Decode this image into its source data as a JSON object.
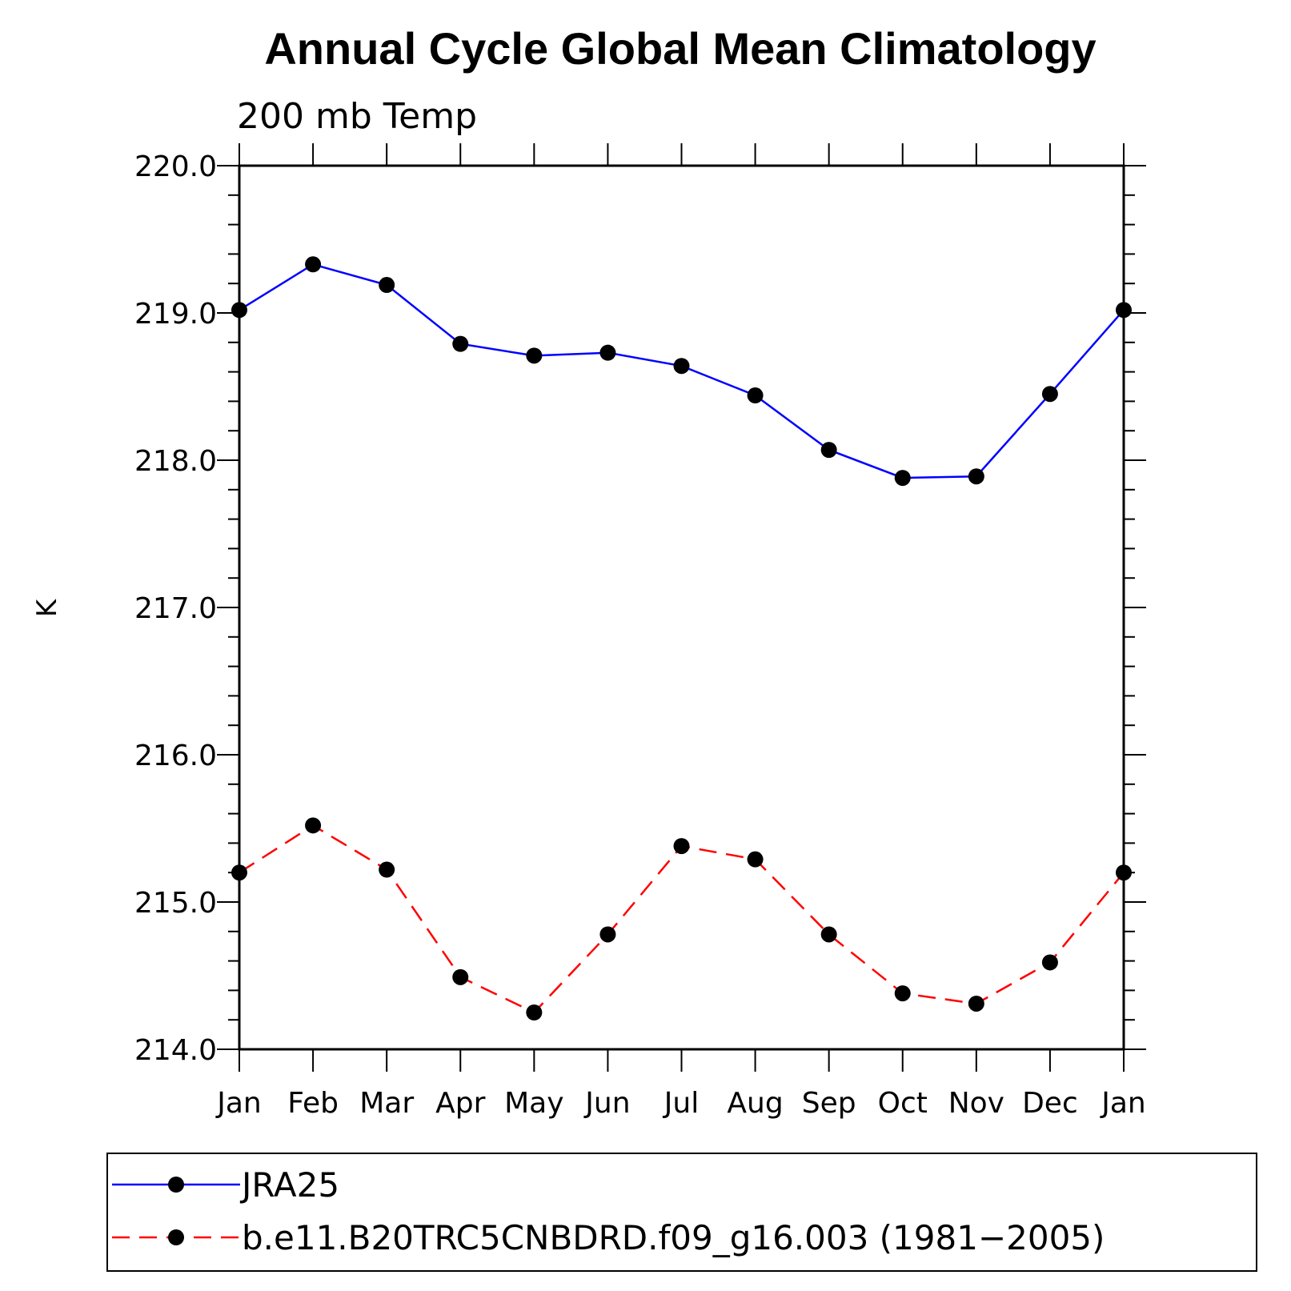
{
  "chart_data": {
    "type": "line",
    "title": "Annual Cycle Global Mean Climatology",
    "subtitle": "200 mb Temp",
    "xlabel": "",
    "ylabel": "K",
    "categories": [
      "Jan",
      "Feb",
      "Mar",
      "Apr",
      "May",
      "Jun",
      "Jul",
      "Aug",
      "Sep",
      "Oct",
      "Nov",
      "Dec",
      "Jan"
    ],
    "ylim": [
      214.0,
      220.0
    ],
    "yticks": [
      "214.0",
      "215.0",
      "216.0",
      "217.0",
      "218.0",
      "219.0",
      "220.0"
    ],
    "grid": false,
    "legend_position": "bottom",
    "series": [
      {
        "name": "JRA25",
        "color": "#0000ff",
        "dash": "solid",
        "values": [
          219.02,
          219.33,
          219.19,
          218.79,
          218.71,
          218.73,
          218.64,
          218.44,
          218.07,
          217.88,
          217.89,
          218.45,
          219.02
        ]
      },
      {
        "name": "b.e11.B20TRC5CNBDRD.f09_g16.003 (1981−2005)",
        "color": "#ff0000",
        "dash": "dashed",
        "values": [
          215.2,
          215.52,
          215.22,
          214.49,
          214.25,
          214.78,
          215.38,
          215.29,
          214.78,
          214.38,
          214.31,
          214.59,
          215.2
        ]
      }
    ]
  }
}
